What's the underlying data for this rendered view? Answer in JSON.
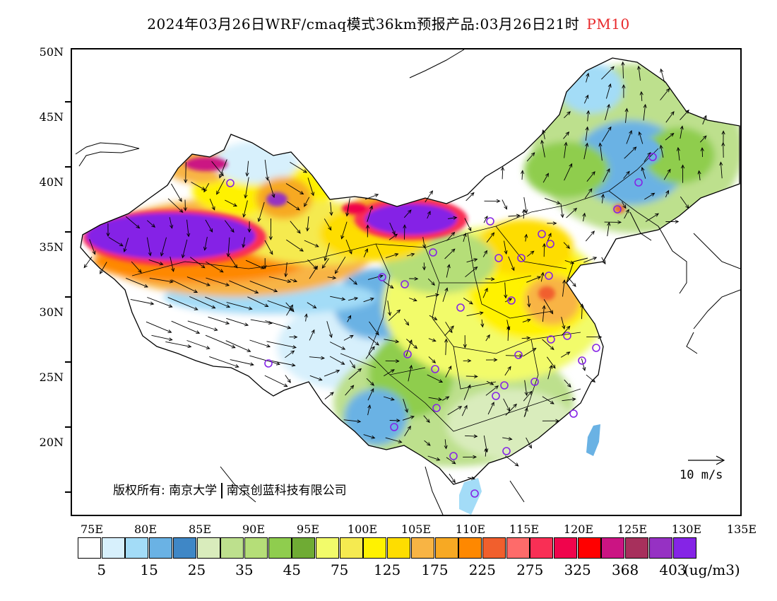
{
  "title": {
    "text": "2024年03月26日WRF/cmaq模式36km预报产品:03月26日21时",
    "pollutant": "PM10"
  },
  "axes": {
    "lat_labels": [
      "50N",
      "45N",
      "40N",
      "35N",
      "30N",
      "25N",
      "20N"
    ],
    "lon_labels": [
      "75E",
      "80E",
      "85E",
      "90E",
      "95E",
      "100E",
      "105E",
      "110E",
      "115E",
      "120E",
      "125E",
      "130E",
      "135E"
    ]
  },
  "legend": {
    "colors": [
      "#ffffff",
      "#d7f0fc",
      "#a3dcf7",
      "#6ab2e4",
      "#3f87c6",
      "#d9ecbc",
      "#bde08d",
      "#b5de78",
      "#8fcd4e",
      "#6fab34",
      "#f2fb6a",
      "#f5ea50",
      "#fff200",
      "#fedd00",
      "#f8b444",
      "#f7a923",
      "#fe8800",
      "#f15f2d",
      "#fe6b6a",
      "#f92f55",
      "#f0044c",
      "#ff0000",
      "#cb1483",
      "#a7305c",
      "#9631c3",
      "#8524e6"
    ],
    "labels": [
      "5",
      "15",
      "25",
      "35",
      "45",
      "75",
      "125",
      "175",
      "225",
      "275",
      "325",
      "368",
      "403"
    ],
    "unit": "(ug/m3)"
  },
  "wind_reference": {
    "label": "10 m/s"
  },
  "copyright": {
    "prefix": "版权所有:",
    "org1": "南京大学",
    "org2": "南京创蓝科技有限公司"
  }
}
